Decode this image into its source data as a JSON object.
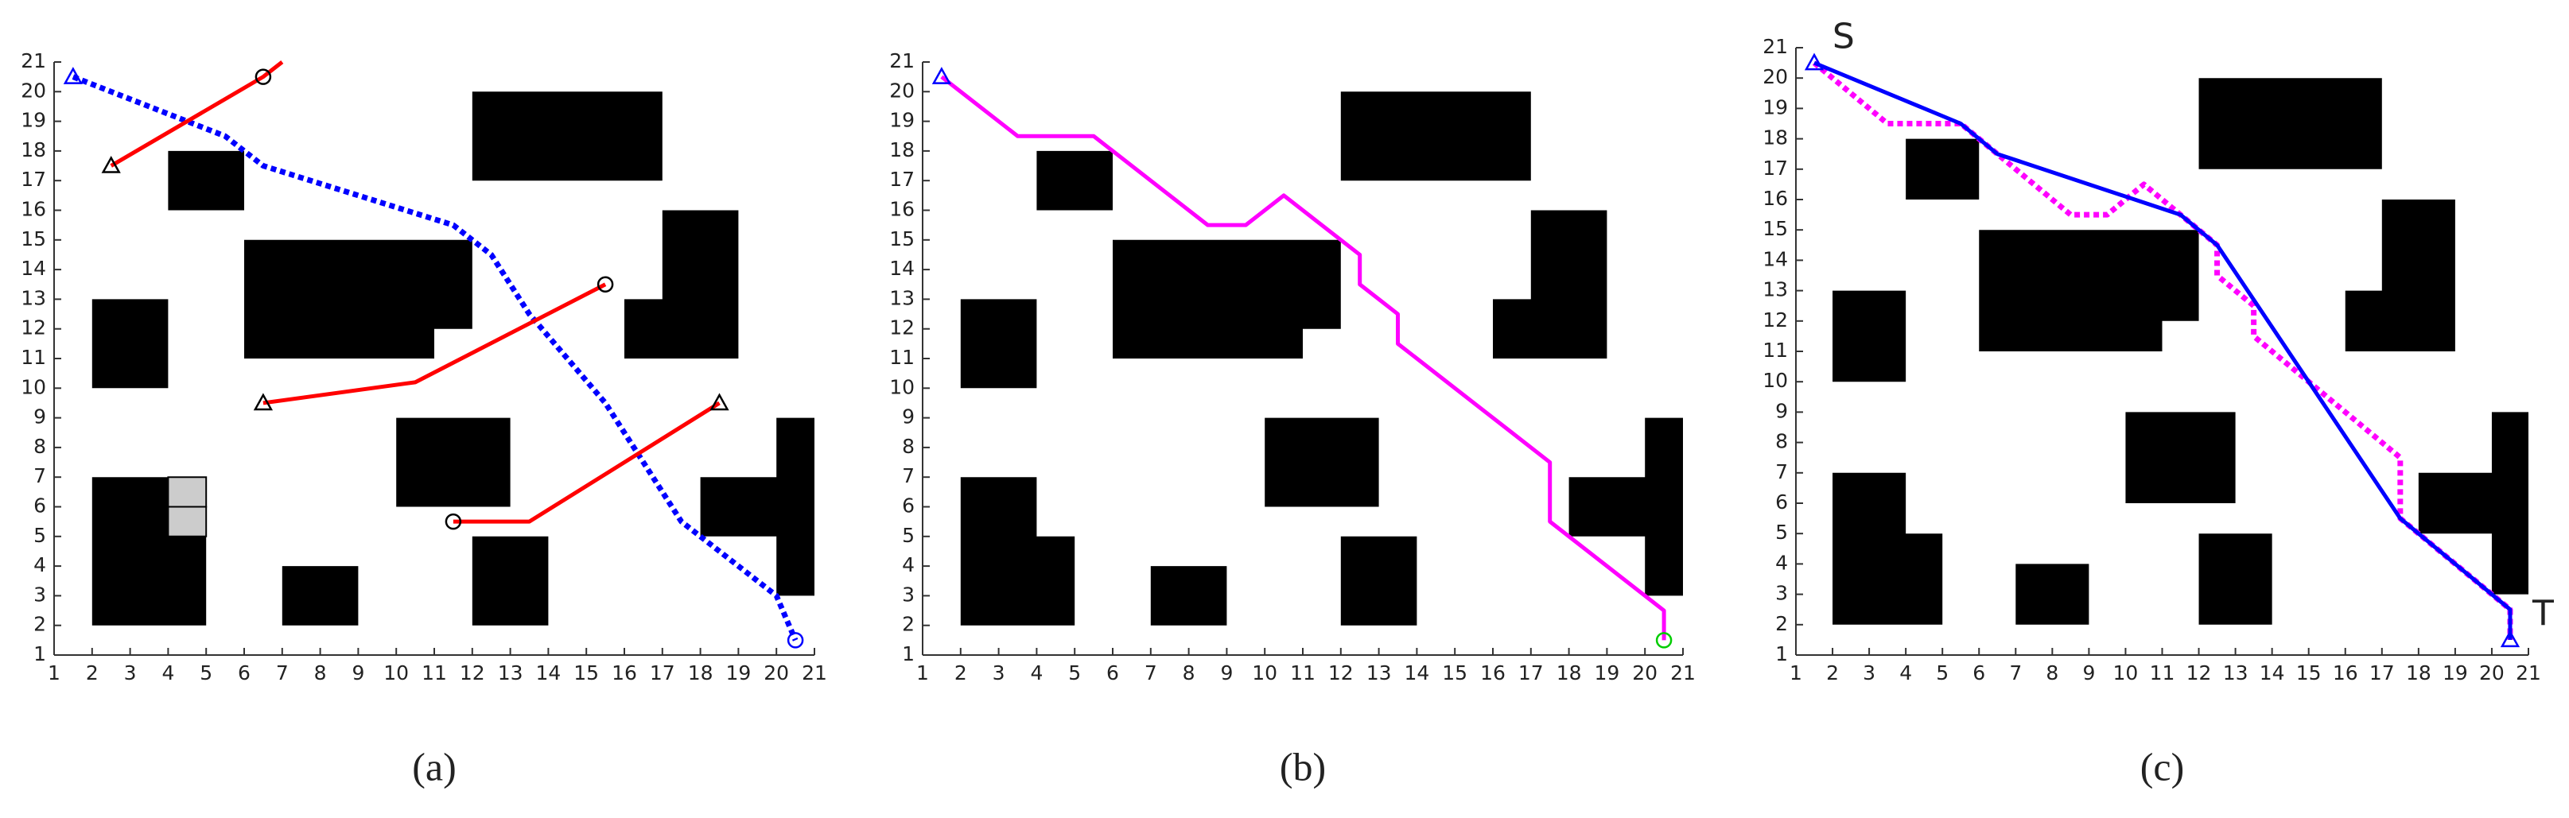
{
  "chart_data": [
    {
      "type": "line",
      "caption": "(a)",
      "xlim": [
        1,
        21
      ],
      "ylim": [
        1,
        21
      ],
      "xticks": [
        1,
        2,
        3,
        4,
        5,
        6,
        7,
        8,
        9,
        10,
        11,
        12,
        13,
        14,
        15,
        16,
        17,
        18,
        19,
        20,
        21
      ],
      "yticks": [
        1,
        2,
        3,
        4,
        5,
        6,
        7,
        8,
        9,
        10,
        11,
        12,
        13,
        14,
        15,
        16,
        17,
        18,
        19,
        20,
        21
      ],
      "obstacles": [
        {
          "color": "#000000",
          "points": [
            [
              4,
              16
            ],
            [
              6,
              16
            ],
            [
              6,
              18
            ],
            [
              4,
              18
            ]
          ]
        },
        {
          "color": "#000000",
          "points": [
            [
              6,
              11
            ],
            [
              11,
              11
            ],
            [
              11,
              12
            ],
            [
              12,
              12
            ],
            [
              12,
              15
            ],
            [
              6,
              15
            ]
          ]
        },
        {
          "color": "#000000",
          "points": [
            [
              2,
              10
            ],
            [
              4,
              10
            ],
            [
              4,
              13
            ],
            [
              2,
              13
            ]
          ]
        },
        {
          "color": "#000000",
          "points": [
            [
              12,
              17
            ],
            [
              17,
              17
            ],
            [
              17,
              20
            ],
            [
              12,
              20
            ]
          ]
        },
        {
          "color": "#000000",
          "points": [
            [
              17,
              16
            ],
            [
              19,
              16
            ],
            [
              19,
              11
            ],
            [
              16,
              11
            ],
            [
              16,
              13
            ],
            [
              17,
              13
            ]
          ]
        },
        {
          "color": "#000000",
          "points": [
            [
              10,
              6
            ],
            [
              13,
              6
            ],
            [
              13,
              9
            ],
            [
              10,
              9
            ]
          ]
        },
        {
          "color": "#000000",
          "points": [
            [
              2,
              2
            ],
            [
              5,
              2
            ],
            [
              5,
              7
            ],
            [
              2,
              7
            ]
          ]
        },
        {
          "color": "#000000",
          "points": [
            [
              7,
              2
            ],
            [
              9,
              2
            ],
            [
              9,
              4
            ],
            [
              7,
              4
            ]
          ]
        },
        {
          "color": "#000000",
          "points": [
            [
              12,
              2
            ],
            [
              14,
              2
            ],
            [
              14,
              5
            ],
            [
              12,
              5
            ]
          ]
        },
        {
          "color": "#000000",
          "points": [
            [
              20,
              9
            ],
            [
              21,
              9
            ],
            [
              21,
              3
            ],
            [
              20,
              3
            ],
            [
              20,
              5
            ],
            [
              18,
              5
            ],
            [
              18,
              7
            ],
            [
              20,
              7
            ]
          ]
        },
        {
          "color": "#cccccc",
          "points": [
            [
              4,
              6
            ],
            [
              5,
              6
            ],
            [
              5,
              7
            ],
            [
              4,
              7
            ]
          ]
        },
        {
          "color": "#cccccc",
          "points": [
            [
              4,
              5
            ],
            [
              5,
              5
            ],
            [
              5,
              6
            ],
            [
              4,
              6
            ]
          ]
        }
      ],
      "series": [
        {
          "color": "#0000ff",
          "style": "dotted",
          "x": [
            1.5,
            5.5,
            6.5,
            11.5,
            12.5,
            13.5,
            15.5,
            17.5,
            20,
            20.5
          ],
          "y": [
            20.5,
            18.5,
            17.5,
            15.5,
            14.5,
            12.5,
            9.5,
            5.5,
            3,
            1.5
          ]
        },
        {
          "color": "#ff0000",
          "style": "solid",
          "x": [
            2.5,
            6.5,
            7
          ],
          "y": [
            17.5,
            20.5,
            21
          ]
        },
        {
          "color": "#ff0000",
          "style": "solid",
          "x": [
            6.5,
            10.5,
            15.5
          ],
          "y": [
            9.5,
            10.2,
            13.5
          ]
        },
        {
          "color": "#ff0000",
          "style": "solid",
          "x": [
            11.5,
            13.5,
            18.5
          ],
          "y": [
            5.5,
            5.5,
            9.5
          ]
        }
      ],
      "points": [
        {
          "marker": "triangle",
          "color": "#0000ff",
          "x": 1.5,
          "y": 20.5
        },
        {
          "marker": "circle",
          "color": "#0000ff",
          "x": 20.5,
          "y": 1.5
        },
        {
          "marker": "triangle",
          "color": "#000000",
          "x": 2.5,
          "y": 17.5
        },
        {
          "marker": "circle",
          "color": "#000000",
          "x": 6.5,
          "y": 20.5
        },
        {
          "marker": "triangle",
          "color": "#000000",
          "x": 6.5,
          "y": 9.5
        },
        {
          "marker": "circle",
          "color": "#000000",
          "x": 15.5,
          "y": 13.5
        },
        {
          "marker": "circle",
          "color": "#000000",
          "x": 11.5,
          "y": 5.5
        },
        {
          "marker": "triangle",
          "color": "#000000",
          "x": 18.5,
          "y": 9.5
        }
      ],
      "annotations": []
    },
    {
      "type": "line",
      "caption": "(b)",
      "xlim": [
        1,
        21
      ],
      "ylim": [
        1,
        21
      ],
      "xticks": [
        1,
        2,
        3,
        4,
        5,
        6,
        7,
        8,
        9,
        10,
        11,
        12,
        13,
        14,
        15,
        16,
        17,
        18,
        19,
        20,
        21
      ],
      "yticks": [
        1,
        2,
        3,
        4,
        5,
        6,
        7,
        8,
        9,
        10,
        11,
        12,
        13,
        14,
        15,
        16,
        17,
        18,
        19,
        20,
        21
      ],
      "obstacles": [
        {
          "color": "#000000",
          "points": [
            [
              4,
              16
            ],
            [
              6,
              16
            ],
            [
              6,
              18
            ],
            [
              4,
              18
            ]
          ]
        },
        {
          "color": "#000000",
          "points": [
            [
              6,
              11
            ],
            [
              11,
              11
            ],
            [
              11,
              12
            ],
            [
              12,
              12
            ],
            [
              12,
              15
            ],
            [
              6,
              15
            ]
          ]
        },
        {
          "color": "#000000",
          "points": [
            [
              2,
              10
            ],
            [
              4,
              10
            ],
            [
              4,
              13
            ],
            [
              2,
              13
            ]
          ]
        },
        {
          "color": "#000000",
          "points": [
            [
              12,
              17
            ],
            [
              17,
              17
            ],
            [
              17,
              20
            ],
            [
              12,
              20
            ]
          ]
        },
        {
          "color": "#000000",
          "points": [
            [
              17,
              16
            ],
            [
              19,
              16
            ],
            [
              19,
              11
            ],
            [
              16,
              11
            ],
            [
              16,
              13
            ],
            [
              17,
              13
            ]
          ]
        },
        {
          "color": "#000000",
          "points": [
            [
              10,
              6
            ],
            [
              13,
              6
            ],
            [
              13,
              9
            ],
            [
              10,
              9
            ]
          ]
        },
        {
          "color": "#000000",
          "points": [
            [
              2,
              2
            ],
            [
              5,
              2
            ],
            [
              5,
              5
            ],
            [
              4,
              5
            ],
            [
              4,
              7
            ],
            [
              2,
              7
            ]
          ]
        },
        {
          "color": "#000000",
          "points": [
            [
              7,
              2
            ],
            [
              9,
              2
            ],
            [
              9,
              4
            ],
            [
              7,
              4
            ]
          ]
        },
        {
          "color": "#000000",
          "points": [
            [
              12,
              2
            ],
            [
              14,
              2
            ],
            [
              14,
              5
            ],
            [
              12,
              5
            ]
          ]
        },
        {
          "color": "#000000",
          "points": [
            [
              20,
              9
            ],
            [
              21,
              9
            ],
            [
              21,
              3
            ],
            [
              20,
              3
            ],
            [
              20,
              5
            ],
            [
              18,
              5
            ],
            [
              18,
              7
            ],
            [
              20,
              7
            ]
          ]
        }
      ],
      "series": [
        {
          "color": "#ff00ff",
          "style": "solid",
          "x": [
            1.5,
            3.5,
            5.5,
            8.5,
            9.5,
            10.5,
            12,
            12.5,
            12.5,
            13.5,
            13.5,
            17.5,
            17.5,
            20.5,
            20.5
          ],
          "y": [
            20.5,
            18.5,
            18.5,
            15.5,
            15.5,
            16.5,
            15,
            14.5,
            13.5,
            12.5,
            11.5,
            7.5,
            5.5,
            2.5,
            1.5
          ]
        }
      ],
      "points": [
        {
          "marker": "triangle",
          "color": "#0000ff",
          "x": 1.5,
          "y": 20.5
        },
        {
          "marker": "circle",
          "color": "#00cc00",
          "x": 20.5,
          "y": 1.5
        }
      ],
      "annotations": []
    },
    {
      "type": "line",
      "caption": "(c)",
      "xlim": [
        1,
        21
      ],
      "ylim": [
        1,
        21
      ],
      "xticks": [
        1,
        2,
        3,
        4,
        5,
        6,
        7,
        8,
        9,
        10,
        11,
        12,
        13,
        14,
        15,
        16,
        17,
        18,
        19,
        20,
        21
      ],
      "yticks": [
        1,
        2,
        3,
        4,
        5,
        6,
        7,
        8,
        9,
        10,
        11,
        12,
        13,
        14,
        15,
        16,
        17,
        18,
        19,
        20,
        21
      ],
      "obstacles": [
        {
          "color": "#000000",
          "points": [
            [
              4,
              16
            ],
            [
              6,
              16
            ],
            [
              6,
              18
            ],
            [
              4,
              18
            ]
          ]
        },
        {
          "color": "#000000",
          "points": [
            [
              6,
              11
            ],
            [
              11,
              11
            ],
            [
              11,
              12
            ],
            [
              12,
              12
            ],
            [
              12,
              15
            ],
            [
              6,
              15
            ]
          ]
        },
        {
          "color": "#000000",
          "points": [
            [
              2,
              10
            ],
            [
              4,
              10
            ],
            [
              4,
              13
            ],
            [
              2,
              13
            ]
          ]
        },
        {
          "color": "#000000",
          "points": [
            [
              12,
              17
            ],
            [
              17,
              17
            ],
            [
              17,
              20
            ],
            [
              12,
              20
            ]
          ]
        },
        {
          "color": "#000000",
          "points": [
            [
              17,
              16
            ],
            [
              19,
              16
            ],
            [
              19,
              11
            ],
            [
              16,
              11
            ],
            [
              16,
              13
            ],
            [
              17,
              13
            ]
          ]
        },
        {
          "color": "#000000",
          "points": [
            [
              10,
              6
            ],
            [
              13,
              6
            ],
            [
              13,
              9
            ],
            [
              10,
              9
            ]
          ]
        },
        {
          "color": "#000000",
          "points": [
            [
              2,
              2
            ],
            [
              5,
              2
            ],
            [
              5,
              5
            ],
            [
              4,
              5
            ],
            [
              4,
              7
            ],
            [
              2,
              7
            ]
          ]
        },
        {
          "color": "#000000",
          "points": [
            [
              7,
              2
            ],
            [
              9,
              2
            ],
            [
              9,
              4
            ],
            [
              7,
              4
            ]
          ]
        },
        {
          "color": "#000000",
          "points": [
            [
              12,
              2
            ],
            [
              14,
              2
            ],
            [
              14,
              5
            ],
            [
              12,
              5
            ]
          ]
        },
        {
          "color": "#000000",
          "points": [
            [
              20,
              9
            ],
            [
              21,
              9
            ],
            [
              21,
              3
            ],
            [
              20,
              3
            ],
            [
              20,
              5
            ],
            [
              18,
              5
            ],
            [
              18,
              7
            ],
            [
              20,
              7
            ]
          ]
        }
      ],
      "series": [
        {
          "color": "#ff00ff",
          "style": "dotted",
          "x": [
            1.5,
            3.5,
            5.5,
            8.5,
            9.5,
            10.5,
            12,
            12.5,
            12.5,
            13.5,
            13.5,
            17.5,
            17.5,
            20.5,
            20.5
          ],
          "y": [
            20.5,
            18.5,
            18.5,
            15.5,
            15.5,
            16.5,
            15,
            14.5,
            13.5,
            12.5,
            11.5,
            7.5,
            5.5,
            2.5,
            1.5
          ]
        },
        {
          "color": "#0000ff",
          "style": "solid",
          "x": [
            1.5,
            5.5,
            6.5,
            11.5,
            12.5,
            17.5,
            20.5,
            20.5
          ],
          "y": [
            20.5,
            18.5,
            17.5,
            15.5,
            14.5,
            5.5,
            2.5,
            1.5
          ]
        }
      ],
      "points": [
        {
          "marker": "triangle",
          "color": "#0000ff",
          "x": 1.5,
          "y": 20.5
        },
        {
          "marker": "triangle",
          "color": "#0000ff",
          "x": 20.5,
          "y": 1.5
        }
      ],
      "annotations": [
        {
          "text": "S",
          "x": 2.3,
          "y": 21.3
        },
        {
          "text": "T",
          "x": 21.4,
          "y": 2.3
        }
      ]
    }
  ]
}
